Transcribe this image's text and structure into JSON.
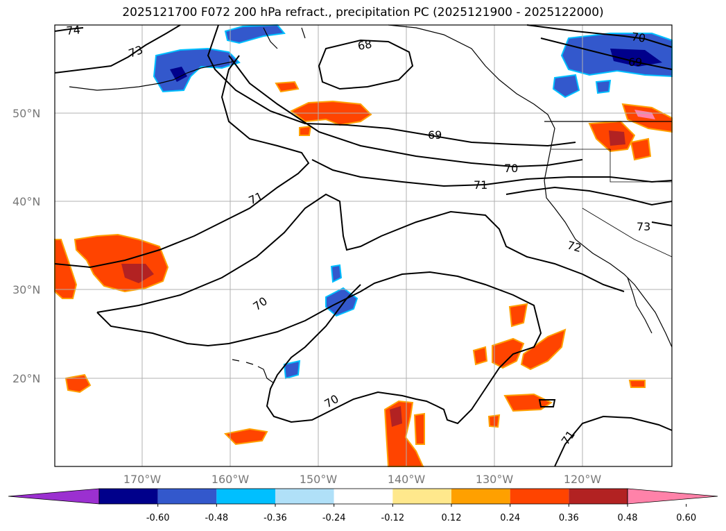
{
  "title": "2025121700 F072 200 hPa refract., precipitation PC (2025121900 - 2025122000)",
  "lat_labels": [
    "50°N",
    "40°N",
    "30°N",
    "20°N"
  ],
  "lon_labels": [
    "170°W",
    "160°W",
    "150°W",
    "140°W",
    "130°W",
    "120°W"
  ],
  "contour_labels": [
    "74",
    "73",
    "68",
    "70",
    "69",
    "69",
    "70",
    "71",
    "71",
    "73",
    "72",
    "70",
    "70",
    "71"
  ],
  "colorbar": {
    "ticks": [
      "-0.60",
      "-0.48",
      "-0.36",
      "-0.24",
      "-0.12",
      "0.12",
      "0.24",
      "0.36",
      "0.48",
      "0.60"
    ],
    "colors": [
      "#9b30d0",
      "#00008b",
      "#3358cc",
      "#00bfff",
      "#b0e0f8",
      "#ffffff",
      "#ffe88c",
      "#ffa000",
      "#ff4400",
      "#b22222",
      "#ff82a9"
    ]
  },
  "colors": {
    "land_outline": "#000000",
    "contour": "#000000",
    "grid": "#b0b0b0"
  }
}
